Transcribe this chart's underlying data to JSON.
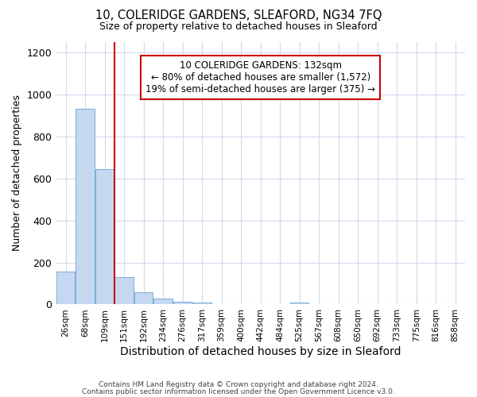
{
  "title": "10, COLERIDGE GARDENS, SLEAFORD, NG34 7FQ",
  "subtitle": "Size of property relative to detached houses in Sleaford",
  "xlabel": "Distribution of detached houses by size in Sleaford",
  "ylabel": "Number of detached properties",
  "categories": [
    "26sqm",
    "68sqm",
    "109sqm",
    "151sqm",
    "192sqm",
    "234sqm",
    "276sqm",
    "317sqm",
    "359sqm",
    "400sqm",
    "442sqm",
    "484sqm",
    "525sqm",
    "567sqm",
    "608sqm",
    "650sqm",
    "692sqm",
    "733sqm",
    "775sqm",
    "816sqm",
    "858sqm"
  ],
  "values": [
    155,
    930,
    645,
    130,
    60,
    28,
    13,
    8,
    0,
    0,
    0,
    0,
    10,
    0,
    0,
    0,
    0,
    0,
    0,
    0,
    0
  ],
  "bar_color": "#c5d8f0",
  "bar_edge_color": "#7aaed6",
  "red_line_x": 2.5,
  "annotation_text": "10 COLERIDGE GARDENS: 132sqm\n← 80% of detached houses are smaller (1,572)\n19% of semi-detached houses are larger (375) →",
  "annotation_box_color": "#ffffff",
  "annotation_box_edge_color": "#cc0000",
  "vline_color": "#cc0000",
  "plot_bg_color": "#ffffff",
  "fig_bg_color": "#ffffff",
  "grid_color": "#d0daea",
  "ylim": [
    0,
    1250
  ],
  "yticks": [
    0,
    200,
    400,
    600,
    800,
    1000,
    1200
  ],
  "footer_line1": "Contains HM Land Registry data © Crown copyright and database right 2024.",
  "footer_line2": "Contains public sector information licensed under the Open Government Licence v3.0."
}
